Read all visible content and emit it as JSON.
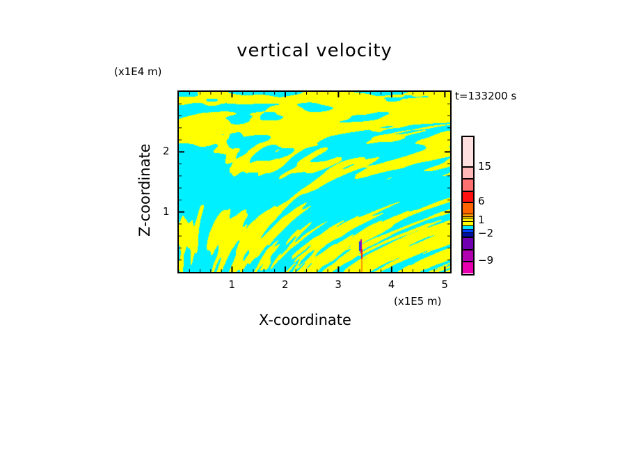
{
  "chart_data": {
    "type": "heatmap",
    "title": "vertical velocity",
    "xlabel": "X-coordinate",
    "ylabel": "Z-coordinate",
    "x_unit": "(x1E5 m)",
    "y_unit": "(x1E4 m)",
    "time_label": "t=133200 s",
    "xlim": [
      0,
      5.1
    ],
    "ylim": [
      0,
      3.0
    ],
    "x_ticks": [
      "1",
      "2",
      "3",
      "4",
      "5"
    ],
    "x_tick_values": [
      1,
      2,
      3,
      4,
      5
    ],
    "y_ticks": [
      "1",
      "2"
    ],
    "y_tick_values": [
      1,
      2
    ],
    "dominant_colors": {
      "positive_small": "#ffff00",
      "negative_small": "#00f0ff"
    },
    "colorbar": {
      "labels": [
        "15",
        "6",
        "1",
        "-2",
        "-9"
      ],
      "label_values": [
        15,
        6,
        1,
        -2,
        -9
      ],
      "colors_top_to_bottom": [
        "#ffe0e0",
        "#ffb8b8",
        "#ff7070",
        "#ff1010",
        "#ff6400",
        "#ff9a00",
        "#ffcc00",
        "#ffee00",
        "#ffff00",
        "#00e8ff",
        "#0040ff",
        "#0010a0",
        "#7000b0",
        "#b000b0",
        "#e800b0"
      ]
    }
  }
}
